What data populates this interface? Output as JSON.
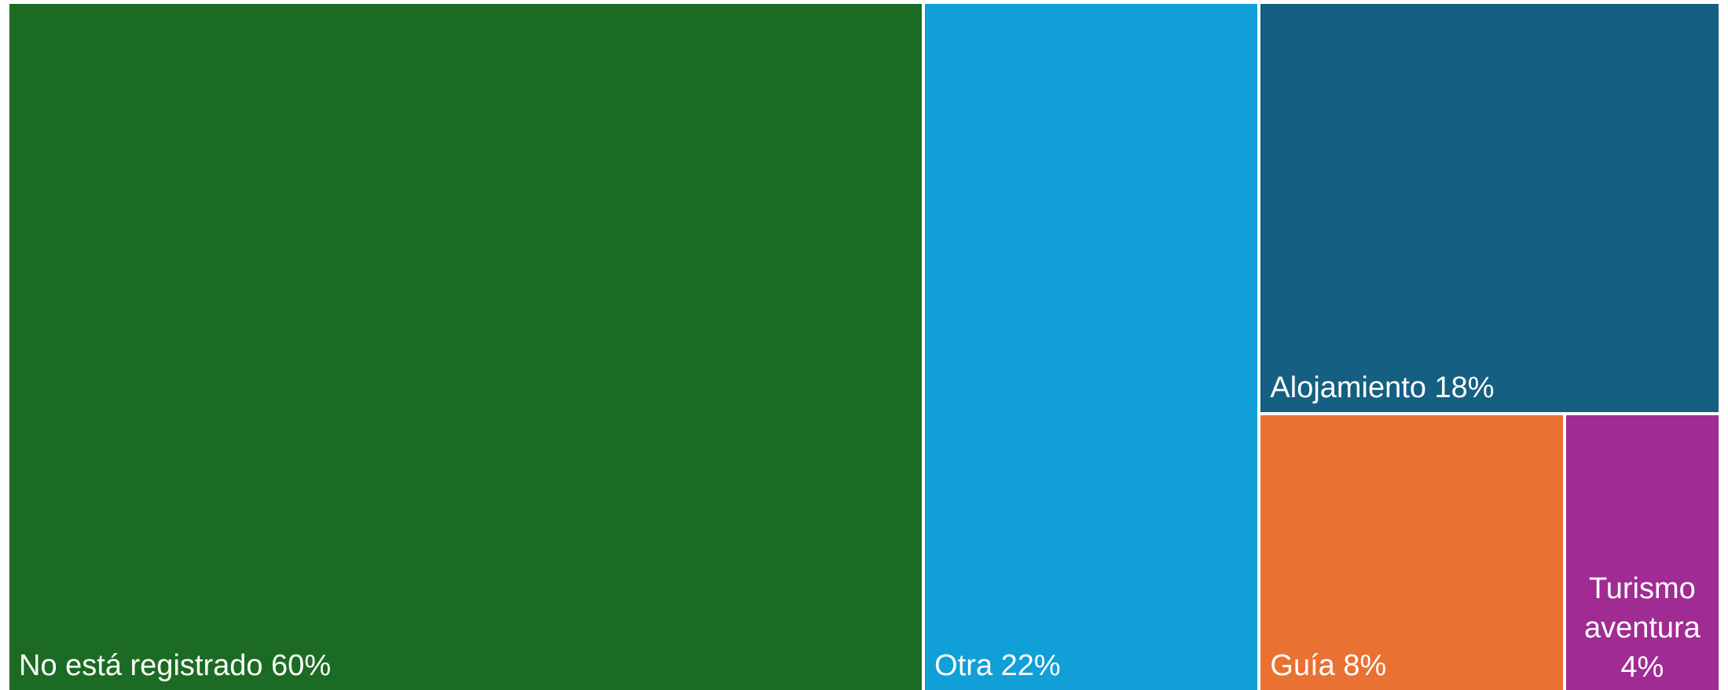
{
  "chart_data": {
    "type": "treemap",
    "title": "",
    "items": [
      {
        "name": "No está registrado",
        "value": 60,
        "label": "No está registrado 60%",
        "color": "#1c6b24"
      },
      {
        "name": "Otra",
        "value": 22,
        "label": "Otra 22%",
        "color": "#109fd7"
      },
      {
        "name": "Alojamiento",
        "value": 18,
        "label": "Alojamiento 18%",
        "color": "#155f82"
      },
      {
        "name": "Guía",
        "value": 8,
        "label": "Guía 8%",
        "color": "#e97132"
      },
      {
        "name": "Turismo aventura",
        "value": 4,
        "label": "Turismo aventura 4%",
        "color": "#a02b93"
      }
    ]
  }
}
